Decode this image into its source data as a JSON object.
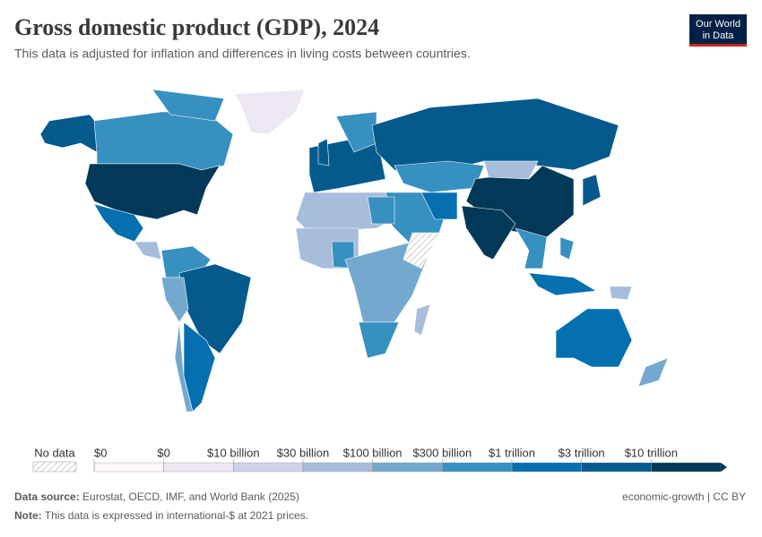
{
  "header": {
    "title": "Gross domestic product (GDP), 2024",
    "subtitle": "This data is adjusted for inflation and differences in living costs between countries.",
    "logo": [
      "Our World",
      "in Data"
    ]
  },
  "legend": {
    "no_data": "No data",
    "labels": [
      "$0",
      "$0",
      "$10 billion",
      "$30 billion",
      "$100 billion",
      "$300 billion",
      "$1 trillion",
      "$3 trillion",
      "$10 trillion"
    ],
    "colors": [
      "#fff7fb",
      "#ece7f2",
      "#d0d1e6",
      "#a6bddb",
      "#74a9cf",
      "#3690c0",
      "#0570b0",
      "#045a8d",
      "#023858"
    ]
  },
  "footer": {
    "source_label": "Data source:",
    "source": "Eurostat, OECD, IMF, and World Bank (2025)",
    "license": "economic-growth | CC BY",
    "note_label": "Note:",
    "note": "This data is expressed in international-$ at 2021 prices."
  }
}
